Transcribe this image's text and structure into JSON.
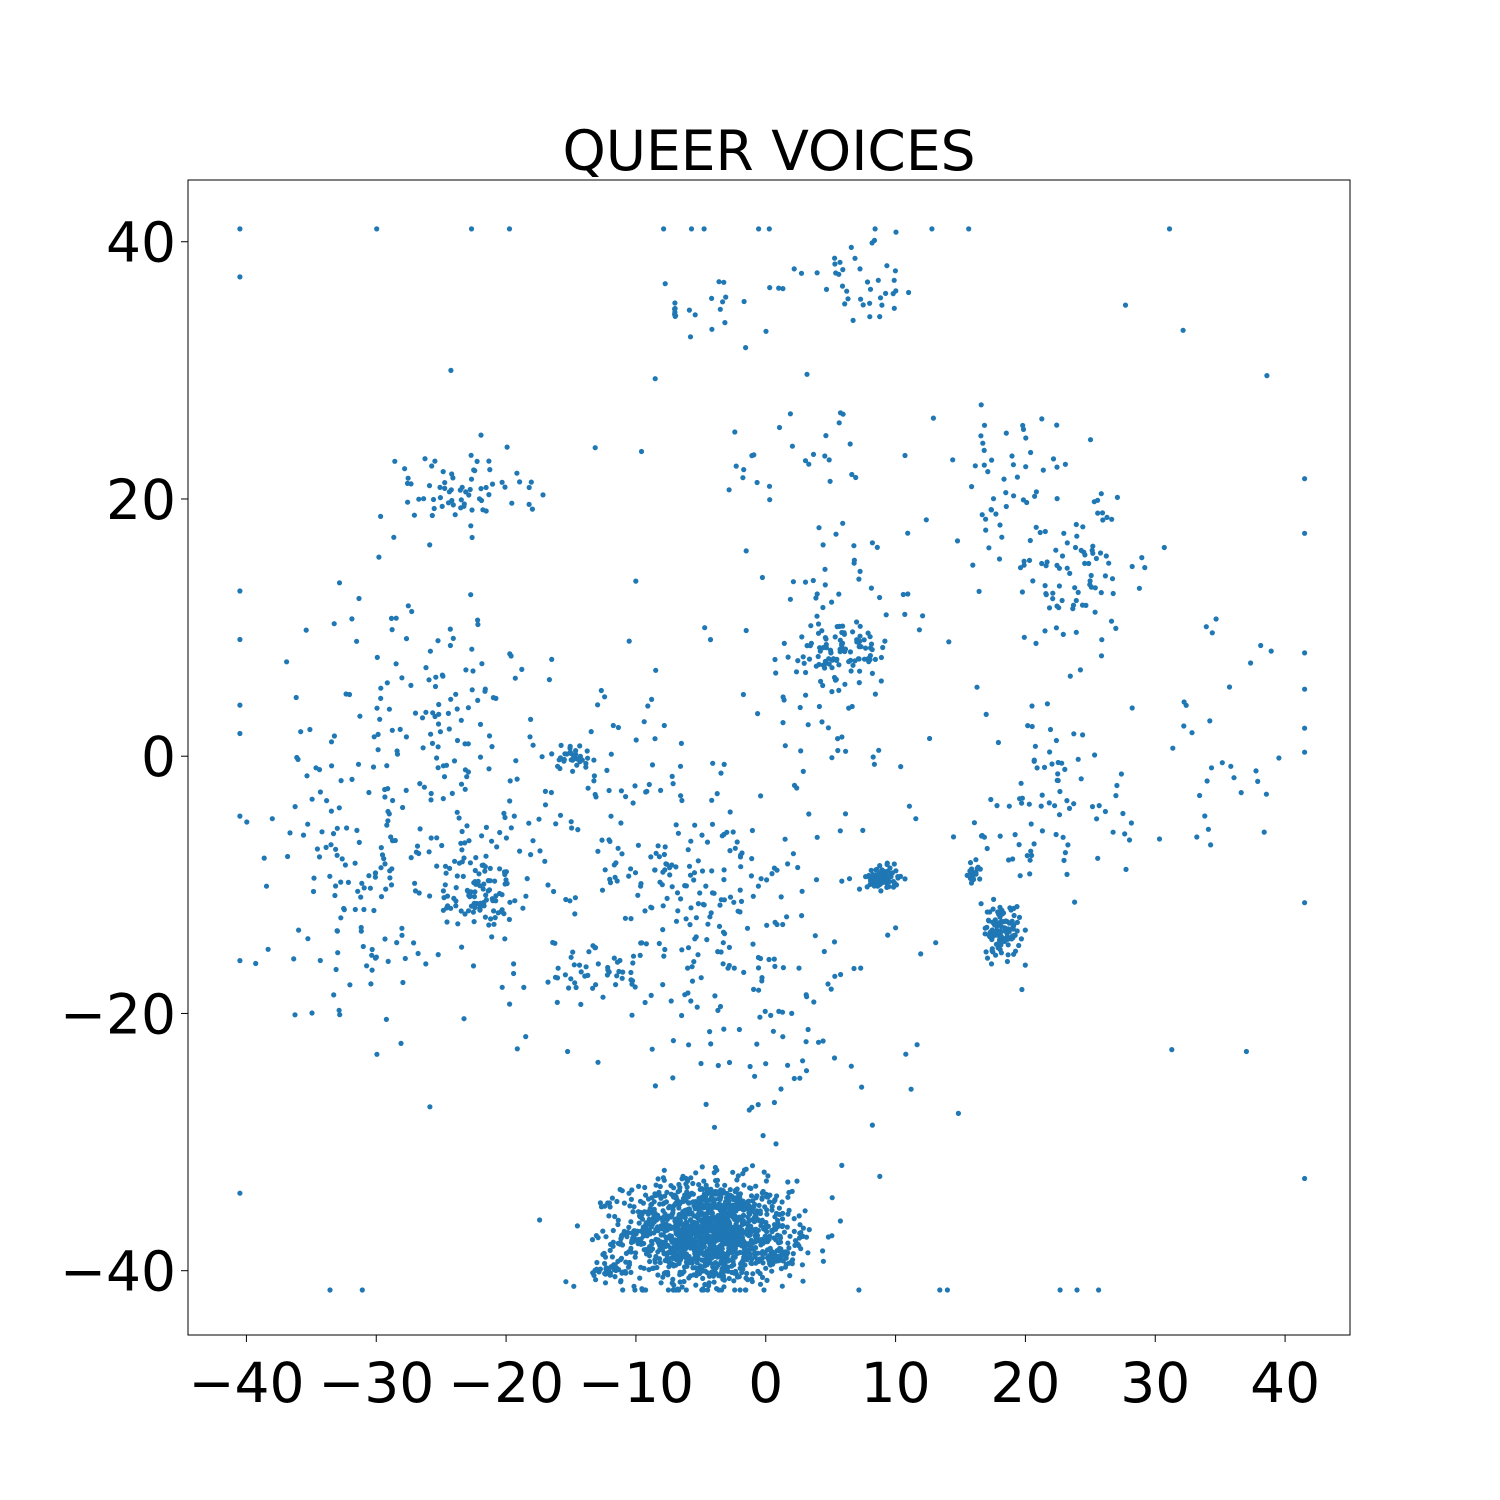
{
  "chart_data": {
    "type": "scatter",
    "title": "QUEER VOICES",
    "xlabel": "",
    "ylabel": "",
    "xlim": [
      -44.5,
      45
    ],
    "ylim": [
      -45,
      44.8
    ],
    "xticks": [
      -40,
      -30,
      -20,
      -10,
      0,
      10,
      20,
      30,
      40
    ],
    "yticks": [
      -40,
      -20,
      0,
      20,
      40
    ],
    "xtick_labels": [
      "−40",
      "−30",
      "−20",
      "−10",
      "0",
      "10",
      "20",
      "30",
      "40"
    ],
    "ytick_labels": [
      "−40",
      "−20",
      "0",
      "20",
      "40"
    ],
    "grid": false,
    "legend": "none",
    "color": "#1f77b4",
    "marker": "circle",
    "clusters": [
      {
        "cx": -4.5,
        "cy": -37,
        "sx": 3.2,
        "sy": 2.0,
        "n": 1400
      },
      {
        "cx": -12,
        "cy": -40,
        "sx": 0.8,
        "sy": 0.4,
        "n": 40
      },
      {
        "cx": 1,
        "cy": -38.8,
        "sx": 0.9,
        "sy": 0.7,
        "n": 50
      },
      {
        "cx": 9,
        "cy": -9.5,
        "sx": 0.6,
        "sy": 0.45,
        "n": 90
      },
      {
        "cx": 18.2,
        "cy": -13.5,
        "sx": 0.7,
        "sy": 1.0,
        "n": 110
      },
      {
        "cx": 16,
        "cy": -9,
        "sx": 0.3,
        "sy": 0.4,
        "n": 20
      },
      {
        "cx": -22,
        "cy": -10.5,
        "sx": 1.3,
        "sy": 1.5,
        "n": 90
      },
      {
        "cx": -15,
        "cy": 0,
        "sx": 0.8,
        "sy": 0.5,
        "n": 30
      },
      {
        "cx": 6.5,
        "cy": 8,
        "sx": 1.5,
        "sy": 1.2,
        "n": 60
      },
      {
        "cx": -4,
        "cy": -11,
        "sx": 4.0,
        "sy": 4.5,
        "n": 170
      },
      {
        "cx": -26,
        "cy": -2,
        "sx": 6.0,
        "sy": 8.0,
        "n": 250
      },
      {
        "cx": -24,
        "cy": 20.5,
        "sx": 3.0,
        "sy": 1.6,
        "n": 70
      },
      {
        "cx": 5,
        "cy": 8,
        "sx": 3.0,
        "sy": 5.0,
        "n": 110
      },
      {
        "cx": 24,
        "cy": 14,
        "sx": 3.0,
        "sy": 3.0,
        "n": 80
      },
      {
        "cx": 19,
        "cy": 21,
        "sx": 3.0,
        "sy": 3.0,
        "n": 60
      },
      {
        "cx": 22,
        "cy": -4,
        "sx": 5.0,
        "sy": 4.0,
        "n": 90
      },
      {
        "cx": 8,
        "cy": 37,
        "sx": 2.5,
        "sy": 1.8,
        "n": 40
      },
      {
        "cx": -3,
        "cy": 35,
        "sx": 2.5,
        "sy": 1.5,
        "n": 18
      },
      {
        "cx": -7,
        "cy": 34.5,
        "sx": 0.05,
        "sy": 0.4,
        "n": 7
      },
      {
        "cx": -12,
        "cy": -7,
        "sx": 4.0,
        "sy": 6.0,
        "n": 90
      },
      {
        "cx": -30,
        "cy": -17,
        "sx": 2.5,
        "sy": 3.0,
        "n": 25
      },
      {
        "cx": -32,
        "cy": -9,
        "sx": 2.0,
        "sy": 2.5,
        "n": 40
      },
      {
        "cx": 35,
        "cy": 0,
        "sx": 3.0,
        "sy": 5.0,
        "n": 25
      },
      {
        "cx": 0,
        "cy": -22,
        "sx": 3.5,
        "sy": 3.0,
        "n": 45
      },
      {
        "cx": -14,
        "cy": -17,
        "sx": 2.0,
        "sy": 1.0,
        "n": 30
      },
      {
        "cx": 3,
        "cy": 23,
        "sx": 3.0,
        "sy": 2.0,
        "n": 25
      },
      {
        "cx": 8,
        "cy": -20,
        "sx": 5.0,
        "sy": 5.0,
        "n": 20
      },
      {
        "cx": 0,
        "cy": 0,
        "sx": 35.0,
        "sy": 30.0,
        "n": 80
      }
    ]
  }
}
